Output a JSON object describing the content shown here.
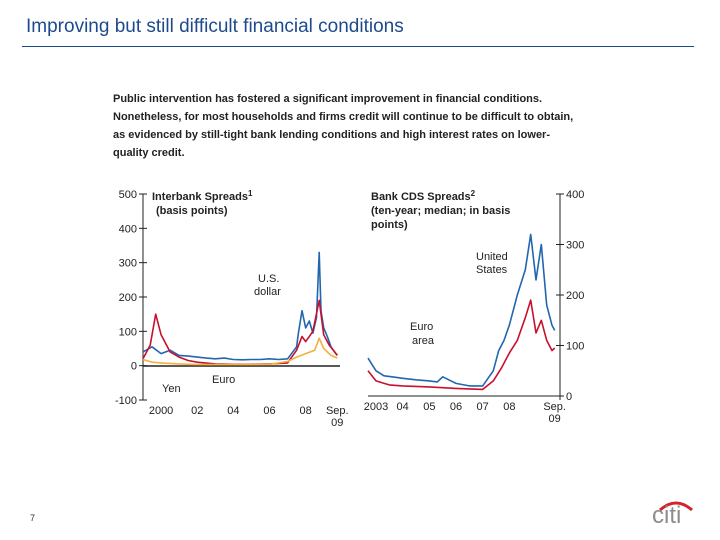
{
  "slide": {
    "title": "Improving but still difficult financial conditions",
    "intro": "Public intervention has fostered a significant improvement in financial conditions. Nonetheless, for most households and firms credit will continue to be difficult to obtain, as evidenced by still-tight bank lending conditions and high interest rates on lower-quality credit.",
    "page_number": "7",
    "logo_text": "citi"
  },
  "colors": {
    "title": "#1d4a8e",
    "us": "#2266b0",
    "euro": "#c8102e",
    "yen": "#f2b13f"
  },
  "chart_data": [
    {
      "type": "line",
      "title": "Interbank Spreads",
      "title_sup": "1",
      "title_2": "(basis points)",
      "ylim": [
        -100,
        500
      ],
      "yticks": [
        -100,
        0,
        100,
        200,
        300,
        400,
        500
      ],
      "ytick_labels": [
        "-100",
        "0",
        "100",
        "200",
        "300",
        "400",
        "500"
      ],
      "xtick_labels": [
        "2000",
        "02",
        "04",
        "06",
        "08",
        "Sep.",
        "09"
      ],
      "annotations": [
        "U.S.",
        "dollar",
        "Euro",
        "Yen"
      ],
      "series": [
        {
          "name": "U.S. dollar",
          "color": "#2266b0",
          "x": [
            1999.0,
            1999.5,
            2000.0,
            2000.5,
            2001.0,
            2001.5,
            2002.0,
            2002.5,
            2003.0,
            2003.5,
            2004.0,
            2004.5,
            2005.0,
            2005.5,
            2006.0,
            2006.5,
            2007.0,
            2007.5,
            2007.6,
            2007.8,
            2008.0,
            2008.2,
            2008.4,
            2008.6,
            2008.75,
            2008.85,
            2009.0,
            2009.2,
            2009.4,
            2009.6,
            2009.75
          ],
          "y": [
            40,
            55,
            35,
            45,
            30,
            28,
            25,
            22,
            20,
            22,
            18,
            17,
            18,
            18,
            20,
            18,
            20,
            55,
            95,
            160,
            110,
            130,
            95,
            140,
            330,
            160,
            110,
            85,
            55,
            40,
            30
          ]
        },
        {
          "name": "Euro",
          "color": "#c8102e",
          "x": [
            1999.0,
            1999.4,
            1999.7,
            2000.0,
            2000.5,
            2001.0,
            2001.5,
            2002.0,
            2003.0,
            2004.0,
            2005.0,
            2006.0,
            2007.0,
            2007.5,
            2007.8,
            2008.0,
            2008.4,
            2008.75,
            2009.0,
            2009.3,
            2009.6,
            2009.75
          ],
          "y": [
            20,
            60,
            150,
            90,
            40,
            25,
            15,
            10,
            5,
            4,
            4,
            5,
            8,
            45,
            85,
            70,
            100,
            190,
            90,
            60,
            40,
            30
          ]
        },
        {
          "name": "Yen",
          "color": "#f2b13f",
          "x": [
            1999.0,
            1999.5,
            2000.0,
            2001.0,
            2002.0,
            2003.0,
            2004.0,
            2005.0,
            2006.0,
            2007.0,
            2007.5,
            2008.0,
            2008.5,
            2008.75,
            2009.0,
            2009.4,
            2009.75
          ],
          "y": [
            18,
            10,
            8,
            5,
            3,
            3,
            3,
            3,
            4,
            12,
            25,
            35,
            45,
            80,
            50,
            30,
            22
          ]
        }
      ]
    },
    {
      "type": "line",
      "title": "Bank CDS Spreads",
      "title_sup": "2",
      "title_2": "(ten-year; median; in basis",
      "title_3": "points)",
      "ylim": [
        0,
        400
      ],
      "yticks": [
        0,
        100,
        200,
        300,
        400
      ],
      "ytick_labels": [
        "0",
        "100",
        "200",
        "300",
        "400"
      ],
      "xtick_labels": [
        "2003",
        "04",
        "05",
        "06",
        "07",
        "08",
        "Sep.",
        "09"
      ],
      "annotations": [
        "United",
        "States",
        "Euro",
        "area"
      ],
      "series": [
        {
          "name": "United States",
          "color": "#2266b0",
          "x": [
            2002.7,
            2003.0,
            2003.3,
            2003.6,
            2004.0,
            2004.5,
            2005.0,
            2005.3,
            2005.5,
            2006.0,
            2006.5,
            2007.0,
            2007.4,
            2007.6,
            2007.8,
            2008.0,
            2008.3,
            2008.6,
            2008.8,
            2009.0,
            2009.2,
            2009.4,
            2009.6,
            2009.7
          ],
          "y": [
            75,
            50,
            40,
            38,
            35,
            32,
            30,
            28,
            38,
            25,
            20,
            20,
            50,
            90,
            110,
            140,
            200,
            250,
            320,
            230,
            300,
            180,
            140,
            130
          ]
        },
        {
          "name": "Euro area",
          "color": "#c8102e",
          "x": [
            2002.7,
            2003.0,
            2003.5,
            2004.0,
            2005.0,
            2006.0,
            2006.5,
            2007.0,
            2007.4,
            2007.7,
            2008.0,
            2008.3,
            2008.6,
            2008.8,
            2009.0,
            2009.2,
            2009.4,
            2009.6,
            2009.7
          ],
          "y": [
            50,
            30,
            22,
            20,
            18,
            15,
            14,
            13,
            30,
            55,
            85,
            110,
            155,
            190,
            125,
            150,
            110,
            90,
            95
          ]
        }
      ]
    }
  ]
}
